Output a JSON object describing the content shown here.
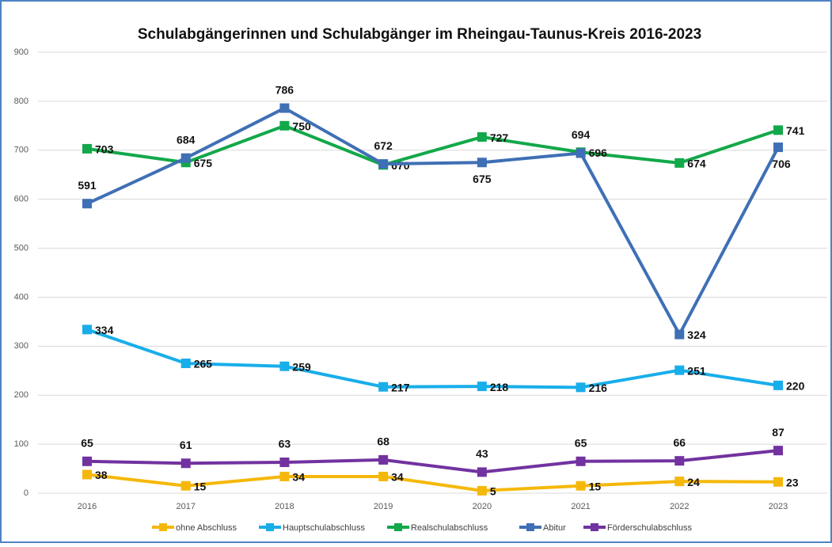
{
  "chart_data": {
    "type": "line",
    "title": "Schulabgängerinnen und Schulabgänger im Rheingau-Taunus-Kreis 2016-2023",
    "categories": [
      "2016",
      "2017",
      "2018",
      "2019",
      "2020",
      "2021",
      "2022",
      "2023"
    ],
    "series": [
      {
        "name": "ohne Abschluss",
        "color": "#f5b80a",
        "values": [
          38,
          15,
          34,
          34,
          5,
          15,
          24,
          23
        ]
      },
      {
        "name": "Hauptschulabschluss",
        "color": "#18aeea",
        "values": [
          334,
          265,
          259,
          217,
          218,
          216,
          251,
          220
        ]
      },
      {
        "name": "Realschulabschluss",
        "color": "#12a84a",
        "values": [
          703,
          675,
          750,
          670,
          727,
          696,
          674,
          741
        ]
      },
      {
        "name": "Abitur",
        "color": "#3f6fb5",
        "values": [
          591,
          684,
          786,
          672,
          675,
          694,
          324,
          706
        ]
      },
      {
        "name": "Förderschulabschluss",
        "color": "#7232a0",
        "values": [
          65,
          61,
          63,
          68,
          43,
          65,
          66,
          87
        ]
      }
    ],
    "ylim": [
      0,
      900
    ],
    "yticks": [
      0,
      100,
      200,
      300,
      400,
      500,
      600,
      700,
      800,
      900
    ],
    "grid": true,
    "legend": "bottom"
  }
}
